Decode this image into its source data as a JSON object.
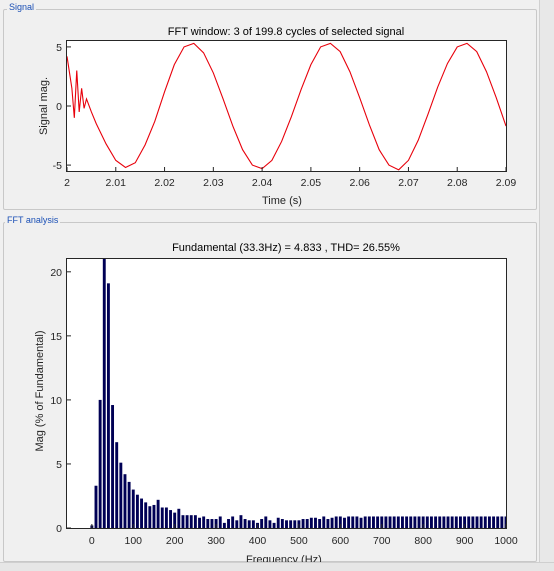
{
  "signal_panel": {
    "title": "Signal",
    "chart_title": "FFT window: 3 of 199.8 cycles of selected signal",
    "xlabel": "Time (s)",
    "ylabel": "Signal mag.",
    "x_ticks": [
      "2",
      "2.01",
      "2.02",
      "2.03",
      "2.04",
      "2.05",
      "2.06",
      "2.07",
      "2.08",
      "2.09"
    ],
    "y_ticks": [
      "5",
      "0",
      "-5"
    ]
  },
  "fft_panel": {
    "title": "FFT analysis",
    "chart_title": "Fundamental (33.3Hz) = 4.833 , THD= 26.55%",
    "xlabel": "Frequency (Hz)",
    "ylabel": "Mag (% of Fundamental)",
    "x_ticks": [
      "0",
      "100",
      "200",
      "300",
      "400",
      "500",
      "600",
      "700",
      "800",
      "900",
      "1000"
    ],
    "y_ticks": [
      "20",
      "15",
      "10",
      "5",
      "0"
    ]
  },
  "colors": {
    "signal_line": "#e8000b",
    "bars": "#000055",
    "panel_title": "#1a4fb5"
  },
  "chart_data": [
    {
      "type": "line",
      "title": "FFT window: 3 of 199.8 cycles of selected signal",
      "xlabel": "Time (s)",
      "ylabel": "Signal mag.",
      "xlim": [
        2,
        2.09
      ],
      "ylim": [
        -5.5,
        5.5
      ],
      "grid": false,
      "series": [
        {
          "frequency_hz": 33.3,
          "amplitude": 5.3,
          "points": [
            [
              2.0,
              4.2
            ],
            [
              2.001,
              1.5
            ],
            [
              2.0015,
              -1.0
            ],
            [
              2.002,
              3.0
            ],
            [
              2.0025,
              -0.5
            ],
            [
              2.003,
              1.5
            ],
            [
              2.0035,
              -0.2
            ],
            [
              2.004,
              0.6
            ],
            [
              2.005,
              -0.5
            ],
            [
              2.006,
              -1.5
            ],
            [
              2.008,
              -3.2
            ],
            [
              2.01,
              -4.6
            ],
            [
              2.012,
              -5.2
            ],
            [
              2.014,
              -4.8
            ],
            [
              2.016,
              -3.3
            ],
            [
              2.018,
              -1.3
            ],
            [
              2.02,
              1.2
            ],
            [
              2.022,
              3.5
            ],
            [
              2.024,
              5.0
            ],
            [
              2.026,
              5.3
            ],
            [
              2.028,
              4.5
            ],
            [
              2.03,
              2.8
            ],
            [
              2.032,
              0.6
            ],
            [
              2.034,
              -1.7
            ],
            [
              2.036,
              -3.7
            ],
            [
              2.038,
              -5.0
            ],
            [
              2.04,
              -5.3
            ],
            [
              2.042,
              -4.6
            ],
            [
              2.044,
              -3.0
            ],
            [
              2.046,
              -0.9
            ],
            [
              2.048,
              1.4
            ],
            [
              2.05,
              3.5
            ],
            [
              2.052,
              5.0
            ],
            [
              2.054,
              5.3
            ],
            [
              2.056,
              4.6
            ],
            [
              2.058,
              2.9
            ],
            [
              2.06,
              0.7
            ],
            [
              2.062,
              -1.6
            ],
            [
              2.064,
              -3.7
            ],
            [
              2.066,
              -5.0
            ],
            [
              2.068,
              -5.4
            ],
            [
              2.07,
              -4.6
            ],
            [
              2.072,
              -2.9
            ],
            [
              2.074,
              -0.7
            ],
            [
              2.076,
              1.6
            ],
            [
              2.078,
              3.6
            ],
            [
              2.08,
              5.0
            ],
            [
              2.082,
              5.3
            ],
            [
              2.084,
              4.6
            ],
            [
              2.086,
              2.9
            ],
            [
              2.088,
              0.7
            ],
            [
              2.09,
              -1.7
            ]
          ]
        }
      ]
    },
    {
      "type": "bar",
      "title": "Fundamental (33.3Hz) = 4.833 , THD= 26.55%",
      "xlabel": "Frequency (Hz)",
      "ylabel": "Mag (% of Fundamental)",
      "xlim": [
        -60,
        1000
      ],
      "ylim": [
        0,
        21
      ],
      "grid": false,
      "bin_width_hz": 10,
      "x": [
        0,
        10,
        20,
        30,
        40,
        50,
        60,
        70,
        80,
        90,
        100,
        110,
        120,
        130,
        140,
        150,
        160,
        170,
        180,
        190,
        200,
        210,
        220,
        230,
        240,
        250,
        260,
        270,
        280,
        290,
        300,
        310,
        320,
        330,
        340,
        350,
        360,
        370,
        380,
        390,
        400,
        410,
        420,
        430,
        440,
        450,
        460,
        470,
        480,
        490,
        500,
        510,
        520,
        530,
        540,
        550,
        560,
        570,
        580,
        590,
        600,
        610,
        620,
        630,
        640,
        650,
        660,
        670,
        680,
        690,
        700,
        710,
        720,
        730,
        740,
        750,
        760,
        770,
        780,
        790,
        800,
        810,
        820,
        830,
        840,
        850,
        860,
        870,
        880,
        890,
        900,
        910,
        920,
        930,
        940,
        950,
        960,
        970,
        980,
        990,
        1000
      ],
      "values": [
        0.2,
        3.3,
        10.0,
        21.0,
        19.1,
        9.6,
        6.7,
        5.1,
        4.2,
        3.6,
        3.0,
        2.6,
        2.3,
        2.0,
        1.7,
        1.8,
        2.2,
        1.6,
        1.6,
        1.4,
        1.2,
        1.5,
        1.0,
        1.0,
        1.0,
        1.0,
        0.8,
        0.9,
        0.7,
        0.7,
        0.7,
        0.9,
        0.4,
        0.7,
        0.9,
        0.6,
        1.0,
        0.7,
        0.6,
        0.6,
        0.4,
        0.7,
        0.9,
        0.6,
        0.4,
        0.8,
        0.7,
        0.6,
        0.6,
        0.6,
        0.6,
        0.7,
        0.7,
        0.8,
        0.8,
        0.7,
        0.9,
        0.7,
        0.8,
        0.9,
        0.9,
        0.8,
        0.9,
        0.9,
        0.9,
        0.8,
        0.9,
        0.9,
        0.9,
        0.9,
        0.9,
        0.9,
        0.9,
        0.9,
        0.9,
        0.9,
        0.9,
        0.9,
        0.9,
        0.9,
        0.9,
        0.9,
        0.9,
        0.9,
        0.9,
        0.9,
        0.9,
        0.9,
        0.9,
        0.9,
        0.9,
        0.9,
        0.9,
        0.9,
        0.9,
        0.9,
        0.9,
        0.9,
        0.9,
        0.9,
        0.9
      ]
    }
  ]
}
